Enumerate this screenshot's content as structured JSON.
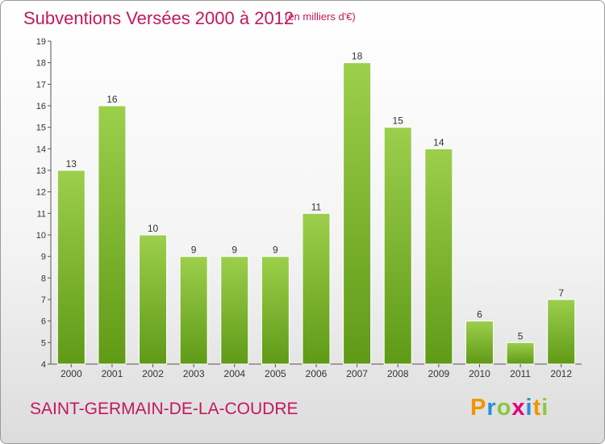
{
  "header": {
    "title": "Subventions Versées 2000 à 2012",
    "subtitle": "(en milliers d'€)"
  },
  "footer": {
    "commune": "SAINT-GERMAIN-DE-LA-COUDRE",
    "logo": "Proxiti"
  },
  "colors": {
    "bar_light": "#9ccf4c",
    "bar_dark": "#5f9a16",
    "title": "#c2185b",
    "logo_letters": [
      "#f29400",
      "#2a8dd6",
      "#8cc63f",
      "#e3007a",
      "#2a8dd6",
      "#f29400",
      "#8cc63f"
    ]
  },
  "chart_data": {
    "type": "bar",
    "categories": [
      "2000",
      "2001",
      "2002",
      "2003",
      "2004",
      "2005",
      "2006",
      "2007",
      "2008",
      "2009",
      "2010",
      "2011",
      "2012"
    ],
    "values": [
      13,
      16,
      10,
      9,
      9,
      9,
      11,
      18,
      15,
      14,
      6,
      5,
      7
    ],
    "data_labels": [
      "13",
      "16",
      "10",
      "9",
      "9",
      "9",
      "11",
      "18",
      "15",
      "14",
      "6",
      "5",
      "7"
    ],
    "ylim": [
      4,
      19
    ],
    "yticks": [
      "4",
      "5",
      "6",
      "7",
      "8",
      "9",
      "10",
      "11",
      "12",
      "13",
      "14",
      "15",
      "16",
      "17",
      "18",
      "19"
    ],
    "grid": false,
    "legend": "none"
  }
}
